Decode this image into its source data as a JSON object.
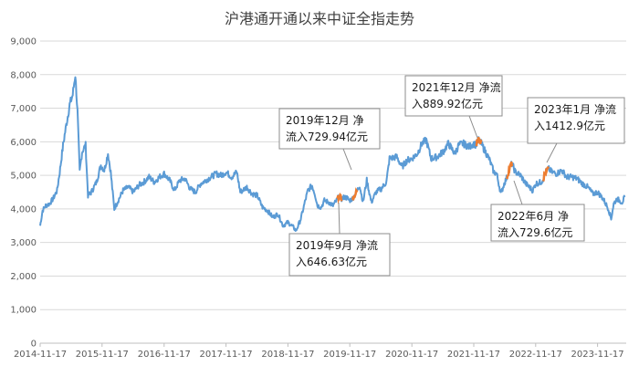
{
  "chart_data": {
    "type": "line",
    "title": "沪港通开通以来中证全指走势",
    "xlabel": "",
    "ylabel": "",
    "ylim": [
      0,
      9000
    ],
    "grid": true,
    "colors": {
      "series": "#5b9bd5",
      "highlight": "#ed7d31"
    },
    "y_ticks": [
      "0",
      "1,000",
      "2,000",
      "3,000",
      "4,000",
      "5,000",
      "6,000",
      "7,000",
      "8,000",
      "9,000"
    ],
    "x_ticks": [
      "2014-11-17",
      "2015-11-17",
      "2016-11-17",
      "2017-11-17",
      "2018-11-17",
      "2019-11-17",
      "2020-11-17",
      "2021-11-17",
      "2022-11-17",
      "2023-11-17"
    ],
    "series": [
      {
        "name": "",
        "points": [
          [
            "2014-11-17",
            3500
          ],
          [
            "2014-12-01",
            3950
          ],
          [
            "2014-12-20",
            4100
          ],
          [
            "2015-01-10",
            4150
          ],
          [
            "2015-02-01",
            4300
          ],
          [
            "2015-02-25",
            4550
          ],
          [
            "2015-03-15",
            5200
          ],
          [
            "2015-04-01",
            5900
          ],
          [
            "2015-04-20",
            6500
          ],
          [
            "2015-05-10",
            7100
          ],
          [
            "2015-05-28",
            7400
          ],
          [
            "2015-06-12",
            8000
          ],
          [
            "2015-06-25",
            6900
          ],
          [
            "2015-07-08",
            5100
          ],
          [
            "2015-07-22",
            5700
          ],
          [
            "2015-08-12",
            5900
          ],
          [
            "2015-08-26",
            4400
          ],
          [
            "2015-09-15",
            4500
          ],
          [
            "2015-10-15",
            4800
          ],
          [
            "2015-11-10",
            5300
          ],
          [
            "2015-11-30",
            5150
          ],
          [
            "2015-12-22",
            5650
          ],
          [
            "2016-01-07",
            5100
          ],
          [
            "2016-01-28",
            4000
          ],
          [
            "2016-02-25",
            4300
          ],
          [
            "2016-03-20",
            4550
          ],
          [
            "2016-04-20",
            4650
          ],
          [
            "2016-05-20",
            4500
          ],
          [
            "2016-06-20",
            4700
          ],
          [
            "2016-07-20",
            4800
          ],
          [
            "2016-08-20",
            4950
          ],
          [
            "2016-09-20",
            4800
          ],
          [
            "2016-10-20",
            4950
          ],
          [
            "2016-11-17",
            5050
          ],
          [
            "2016-12-20",
            4850
          ],
          [
            "2017-01-17",
            4550
          ],
          [
            "2017-02-17",
            4850
          ],
          [
            "2017-03-20",
            4900
          ],
          [
            "2017-04-20",
            4600
          ],
          [
            "2017-05-20",
            4500
          ],
          [
            "2017-06-20",
            4750
          ],
          [
            "2017-07-20",
            4850
          ],
          [
            "2017-08-20",
            4950
          ],
          [
            "2017-09-20",
            5050
          ],
          [
            "2017-10-20",
            5000
          ],
          [
            "2017-11-17",
            5100
          ],
          [
            "2017-12-20",
            4950
          ],
          [
            "2018-01-20",
            5100
          ],
          [
            "2018-02-09",
            4500
          ],
          [
            "2018-03-20",
            4650
          ],
          [
            "2018-04-20",
            4450
          ],
          [
            "2018-05-20",
            4400
          ],
          [
            "2018-06-20",
            4050
          ],
          [
            "2018-07-20",
            3950
          ],
          [
            "2018-08-20",
            3750
          ],
          [
            "2018-09-20",
            3850
          ],
          [
            "2018-10-19",
            3500
          ],
          [
            "2018-11-17",
            3600
          ],
          [
            "2018-12-20",
            3450
          ],
          [
            "2019-01-04",
            3350
          ],
          [
            "2019-02-01",
            3700
          ],
          [
            "2019-02-25",
            4200
          ],
          [
            "2019-03-15",
            4550
          ],
          [
            "2019-04-08",
            4700
          ],
          [
            "2019-04-25",
            4450
          ],
          [
            "2019-05-10",
            4100
          ],
          [
            "2019-06-01",
            4050
          ],
          [
            "2019-06-20",
            4250
          ],
          [
            "2019-07-15",
            4200
          ],
          [
            "2019-08-10",
            4100
          ],
          [
            "2019-08-31",
            4250
          ],
          [
            "2019-09-15",
            4380
          ],
          [
            "2019-09-30",
            4300
          ],
          [
            "2019-10-15",
            4350
          ],
          [
            "2019-10-31",
            4330
          ],
          [
            "2019-11-15",
            4250
          ],
          [
            "2019-12-01",
            4300
          ],
          [
            "2019-12-15",
            4400
          ],
          [
            "2019-12-31",
            4550
          ],
          [
            "2020-01-14",
            4700
          ],
          [
            "2020-02-03",
            4200
          ],
          [
            "2020-02-25",
            4850
          ],
          [
            "2020-03-23",
            4200
          ],
          [
            "2020-04-20",
            4500
          ],
          [
            "2020-05-20",
            4600
          ],
          [
            "2020-06-20",
            4800
          ],
          [
            "2020-07-08",
            5500
          ],
          [
            "2020-08-20",
            5550
          ],
          [
            "2020-09-20",
            5250
          ],
          [
            "2020-10-20",
            5450
          ],
          [
            "2020-11-17",
            5500
          ],
          [
            "2020-12-20",
            5650
          ],
          [
            "2021-01-15",
            5950
          ],
          [
            "2021-02-10",
            6050
          ],
          [
            "2021-03-10",
            5500
          ],
          [
            "2021-04-15",
            5550
          ],
          [
            "2021-05-20",
            5700
          ],
          [
            "2021-06-20",
            5950
          ],
          [
            "2021-07-28",
            5650
          ],
          [
            "2021-08-20",
            5900
          ],
          [
            "2021-09-15",
            5950
          ],
          [
            "2021-10-20",
            5850
          ],
          [
            "2021-11-17",
            5950
          ],
          [
            "2021-11-30",
            5900
          ],
          [
            "2021-12-15",
            6050
          ],
          [
            "2021-12-31",
            5950
          ],
          [
            "2022-01-20",
            5750
          ],
          [
            "2022-02-15",
            5500
          ],
          [
            "2022-03-15",
            5100
          ],
          [
            "2022-04-01",
            5050
          ],
          [
            "2022-04-26",
            4450
          ],
          [
            "2022-05-15",
            4750
          ],
          [
            "2022-06-01",
            4950
          ],
          [
            "2022-06-15",
            5200
          ],
          [
            "2022-06-30",
            5350
          ],
          [
            "2022-07-20",
            5100
          ],
          [
            "2022-08-20",
            5000
          ],
          [
            "2022-09-20",
            4750
          ],
          [
            "2022-10-31",
            4550
          ],
          [
            "2022-11-17",
            4750
          ],
          [
            "2022-12-20",
            4800
          ],
          [
            "2023-01-01",
            4900
          ],
          [
            "2023-01-15",
            5100
          ],
          [
            "2023-01-31",
            5200
          ],
          [
            "2023-02-20",
            5100
          ],
          [
            "2023-03-20",
            5050
          ],
          [
            "2023-04-20",
            5150
          ],
          [
            "2023-05-20",
            4950
          ],
          [
            "2023-06-20",
            4950
          ],
          [
            "2023-07-20",
            4900
          ],
          [
            "2023-08-20",
            4750
          ],
          [
            "2023-09-20",
            4650
          ],
          [
            "2023-10-20",
            4450
          ],
          [
            "2023-11-17",
            4500
          ],
          [
            "2023-12-20",
            4300
          ],
          [
            "2024-01-20",
            4000
          ],
          [
            "2024-02-05",
            3700
          ],
          [
            "2024-02-20",
            4150
          ],
          [
            "2024-03-10",
            4300
          ],
          [
            "2024-03-25",
            4250
          ],
          [
            "2024-04-10",
            4200
          ],
          [
            "2024-04-25",
            4350
          ]
        ]
      }
    ],
    "highlights": [
      {
        "start": "2019-09-01",
        "end": "2019-09-30"
      },
      {
        "start": "2019-12-01",
        "end": "2019-12-31"
      },
      {
        "start": "2021-12-01",
        "end": "2021-12-31"
      },
      {
        "start": "2022-06-01",
        "end": "2022-06-30"
      },
      {
        "start": "2023-01-01",
        "end": "2023-01-31"
      }
    ],
    "annotations": [
      {
        "lines": [
          "2019年12月  净",
          "流入729.94亿元"
        ]
      },
      {
        "lines": [
          "2021年12月  净流",
          "入889.92亿元"
        ]
      },
      {
        "lines": [
          "2023年1月  净流",
          "入1412.9亿元"
        ]
      },
      {
        "lines": [
          "2019年9月  净流",
          "入646.63亿元"
        ]
      },
      {
        "lines": [
          "2022年6月  净",
          "流入729.6亿元"
        ]
      }
    ]
  }
}
